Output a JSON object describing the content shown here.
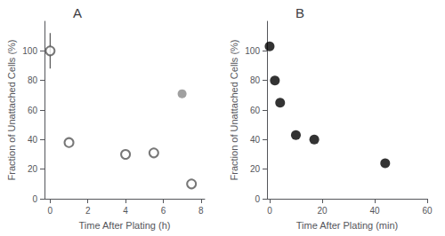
{
  "chart_data": [
    {
      "type": "scatter",
      "title": "A",
      "xlabel": "Time After Plating (h)",
      "ylabel": "Fraction of Unattached Cells (%)",
      "xlim": [
        -0.3,
        8.2
      ],
      "ylim": [
        0,
        120
      ],
      "xticks": [
        0,
        2,
        4,
        6,
        8
      ],
      "yticks": [
        0,
        20,
        40,
        60,
        80,
        100
      ],
      "grid": false,
      "series": [
        {
          "x": [
            0,
            1,
            4,
            5.5,
            7.5
          ],
          "values": [
            100,
            38,
            30,
            31,
            10
          ],
          "errors": [
            12,
            null,
            null,
            null,
            null
          ],
          "color": "#555555",
          "marker": "open_circle"
        },
        {
          "x": [
            7
          ],
          "values": [
            71
          ],
          "color": "#888888",
          "marker": "circle"
        }
      ]
    },
    {
      "type": "scatter",
      "title": "B",
      "xlabel": "Time After Plating (min)",
      "ylabel": "Fraction of Unattached Cells (%)",
      "xlim": [
        -1,
        60
      ],
      "ylim": [
        0,
        120
      ],
      "xticks": [
        0,
        20,
        40,
        60
      ],
      "yticks": [
        0,
        20,
        40,
        60,
        80,
        100
      ],
      "grid": false,
      "series": [
        {
          "x": [
            0,
            2,
            4,
            10,
            17,
            44
          ],
          "values": [
            103,
            80,
            65,
            43,
            40,
            24
          ],
          "color": "black",
          "marker": "circle"
        }
      ]
    }
  ]
}
